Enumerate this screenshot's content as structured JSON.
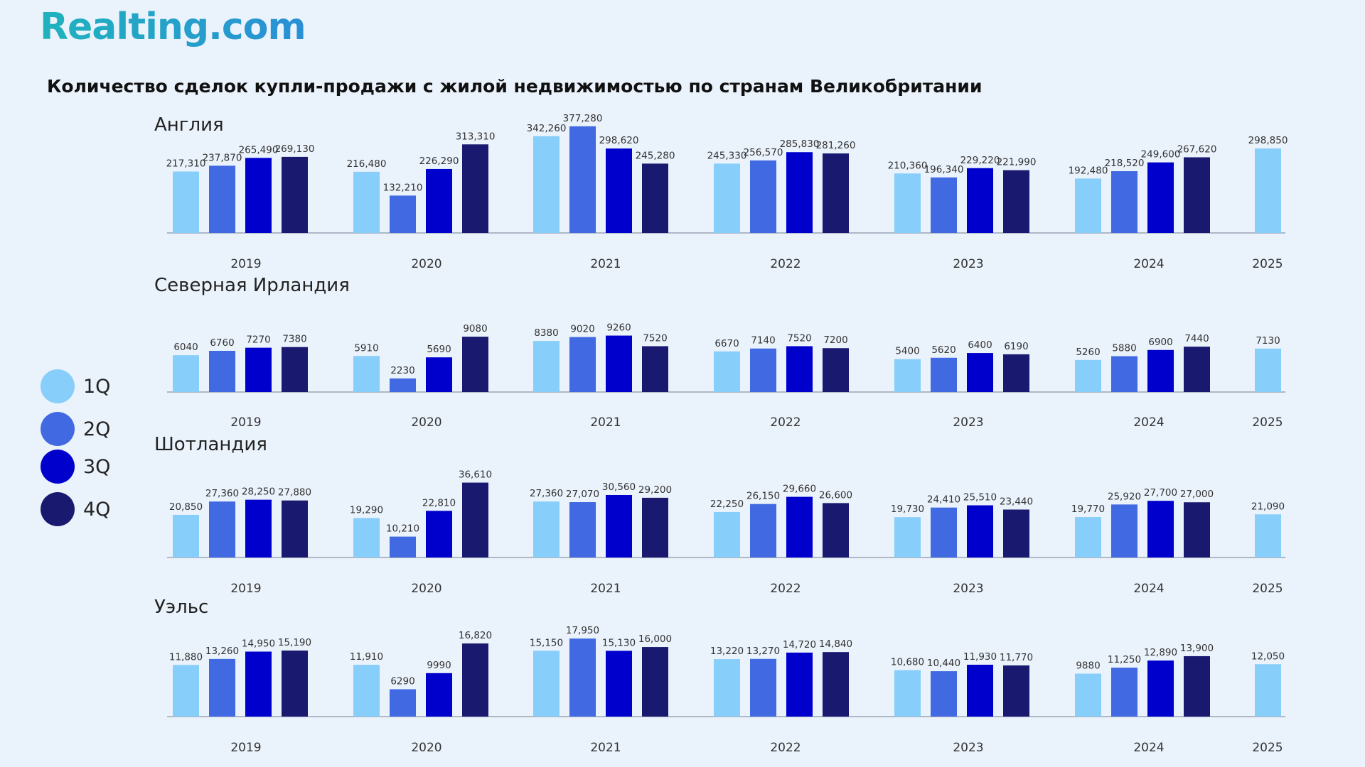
{
  "brand": {
    "logo_text": "Realting.com"
  },
  "legend": [
    {
      "label": "1Q",
      "color": "#87cefa"
    },
    {
      "label": "2Q",
      "color": "#4169e1"
    },
    {
      "label": "3Q",
      "color": "#0000cd"
    },
    {
      "label": "4Q",
      "color": "#191970"
    }
  ],
  "chart_data": {
    "type": "bar",
    "title": "Количество сделок купли-продажи с жилой недвижимостью по странам Великобритании",
    "series_names": [
      "1Q",
      "2Q",
      "3Q",
      "4Q"
    ],
    "years": [
      "2019",
      "2020",
      "2021",
      "2022",
      "2023",
      "2024",
      "2025"
    ],
    "panels": [
      {
        "name": "Англия",
        "values": [
          [
            217310,
            237870,
            265490,
            269130
          ],
          [
            216480,
            132210,
            226290,
            313310
          ],
          [
            342260,
            377280,
            298620,
            245280
          ],
          [
            245330,
            256570,
            285830,
            281260
          ],
          [
            210360,
            196340,
            229220,
            221990
          ],
          [
            192480,
            218520,
            249600,
            267620
          ],
          [
            298850
          ]
        ],
        "labels": [
          [
            "217,310",
            "237,870",
            "265,490",
            "269,130"
          ],
          [
            "216,480",
            "132,210",
            "226,290",
            "313,310"
          ],
          [
            "342,260",
            "377,280",
            "298,620",
            "245,280"
          ],
          [
            "245,330",
            "256,570",
            "285,830",
            "281,260"
          ],
          [
            "210,360",
            "196,340",
            "229,220",
            "221,990"
          ],
          [
            "192,480",
            "218,520",
            "249,600",
            "267,620"
          ],
          [
            "298,850"
          ]
        ]
      },
      {
        "name": "Северная Ирландия",
        "values": [
          [
            6040,
            6760,
            7270,
            7380
          ],
          [
            5910,
            2230,
            5690,
            9080
          ],
          [
            8380,
            9020,
            9260,
            7520
          ],
          [
            6670,
            7140,
            7520,
            7200
          ],
          [
            5400,
            5620,
            6400,
            6190
          ],
          [
            5260,
            5880,
            6900,
            7440
          ],
          [
            7130
          ]
        ],
        "labels": [
          [
            "6040",
            "6760",
            "7270",
            "7380"
          ],
          [
            "5910",
            "2230",
            "5690",
            "9080"
          ],
          [
            "8380",
            "9020",
            "9260",
            "7520"
          ],
          [
            "6670",
            "7140",
            "7520",
            "7200"
          ],
          [
            "5400",
            "5620",
            "6400",
            "6190"
          ],
          [
            "5260",
            "5880",
            "6900",
            "7440"
          ],
          [
            "7130"
          ]
        ]
      },
      {
        "name": "Шотландия",
        "values": [
          [
            20850,
            27360,
            28250,
            27880
          ],
          [
            19290,
            10210,
            22810,
            36610
          ],
          [
            27360,
            27070,
            30560,
            29200
          ],
          [
            22250,
            26150,
            29660,
            26600
          ],
          [
            19730,
            24410,
            25510,
            23440
          ],
          [
            19770,
            25920,
            27700,
            27000
          ],
          [
            21090
          ]
        ],
        "labels": [
          [
            "20,850",
            "27,360",
            "28,250",
            "27,880"
          ],
          [
            "19,290",
            "10,210",
            "22,810",
            "36,610"
          ],
          [
            "27,360",
            "27,070",
            "30,560",
            "29,200"
          ],
          [
            "22,250",
            "26,150",
            "29,660",
            "26,600"
          ],
          [
            "19,730",
            "24,410",
            "25,510",
            "23,440"
          ],
          [
            "19,770",
            "25,920",
            "27,700",
            "27,000"
          ],
          [
            "21,090"
          ]
        ]
      },
      {
        "name": "Уэльс",
        "values": [
          [
            11880,
            13260,
            14950,
            15190
          ],
          [
            11910,
            6290,
            9990,
            16820
          ],
          [
            15150,
            17950,
            15130,
            16000
          ],
          [
            13220,
            13270,
            14720,
            14840
          ],
          [
            10680,
            10440,
            11930,
            11770
          ],
          [
            9880,
            11250,
            12890,
            13900
          ],
          [
            12050
          ]
        ],
        "labels": [
          [
            "11,880",
            "13,260",
            "14,950",
            "15,190"
          ],
          [
            "11,910",
            "6290",
            "9990",
            "16,820"
          ],
          [
            "15,150",
            "17,950",
            "15,130",
            "16,000"
          ],
          [
            "13,220",
            "13,270",
            "14,720",
            "14,840"
          ],
          [
            "10,680",
            "10,440",
            "11,930",
            "11,770"
          ],
          [
            "9880",
            "11,250",
            "12,890",
            "13,900"
          ],
          [
            "12,050"
          ]
        ]
      }
    ]
  }
}
